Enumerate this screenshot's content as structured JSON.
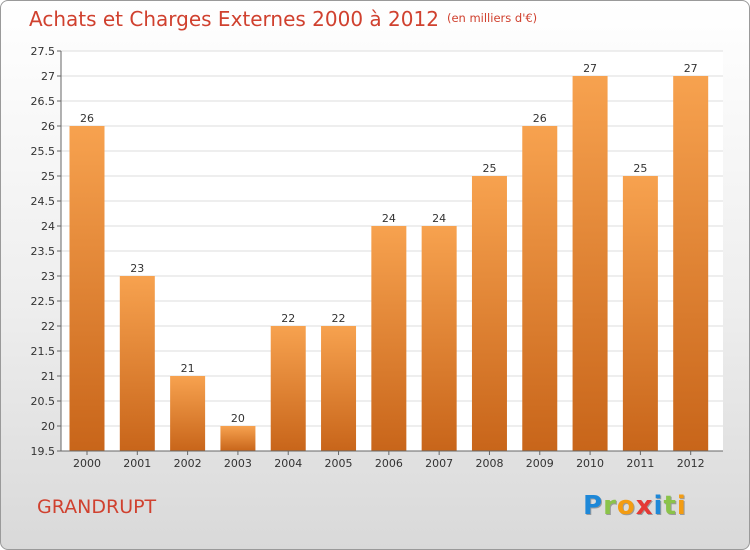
{
  "title": "Achats et Charges Externes 2000 à 2012",
  "unit": "(en milliers d'€)",
  "town": "GRANDRUPT",
  "logo": {
    "letters": [
      {
        "ch": "P",
        "color": "#1e88d8"
      },
      {
        "ch": "r",
        "color": "#8bc34a"
      },
      {
        "ch": "o",
        "color": "#f39c12"
      },
      {
        "ch": "x",
        "color": "#e53935"
      },
      {
        "ch": "i",
        "color": "#1e88d8"
      },
      {
        "ch": "t",
        "color": "#8bc34a"
      },
      {
        "ch": "i",
        "color": "#f39c12"
      }
    ]
  },
  "colors": {
    "bar_top": "#f7a24f",
    "bar_bottom": "#c8651a",
    "title": "#d0412f",
    "grid": "#dedede"
  },
  "chart_data": {
    "type": "bar",
    "categories": [
      "2000",
      "2001",
      "2002",
      "2003",
      "2004",
      "2005",
      "2006",
      "2007",
      "2008",
      "2009",
      "2010",
      "2011",
      "2012"
    ],
    "values": [
      26,
      23,
      21,
      20,
      22,
      22,
      24,
      24,
      25,
      26,
      27,
      25,
      27
    ],
    "data_labels": [
      "26",
      "23",
      "21",
      "20",
      "22",
      "22",
      "24",
      "24",
      "25",
      "26",
      "27",
      "25",
      "27"
    ],
    "title": "Achats et Charges Externes 2000 à 2012",
    "ylim": [
      19.5,
      27.5
    ],
    "yticks": [
      19.5,
      20,
      20.5,
      21,
      21.5,
      22,
      22.5,
      23,
      23.5,
      24,
      24.5,
      25,
      25.5,
      26,
      26.5,
      27,
      27.5
    ],
    "ytick_labels": [
      "19.5",
      "20",
      "20.5",
      "21",
      "21.5",
      "22",
      "22.5",
      "23",
      "23.5",
      "24",
      "24.5",
      "25",
      "25.5",
      "26",
      "26.5",
      "27",
      "27.5"
    ],
    "grid": true,
    "legend": "none"
  }
}
